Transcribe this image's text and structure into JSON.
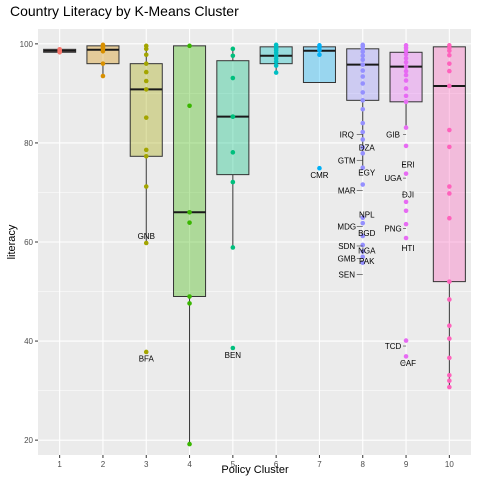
{
  "chart_data": {
    "type": "box",
    "title": "Country Literacy by K-Means Cluster",
    "xlabel": "Policy Cluster",
    "ylabel": "literacy",
    "ylim": [
      17,
      103
    ],
    "yticks": [
      20,
      40,
      60,
      80,
      100
    ],
    "grid": true,
    "legend": "none",
    "categories": [
      "1",
      "2",
      "3",
      "4",
      "5",
      "6",
      "7",
      "8",
      "9",
      "10"
    ],
    "colors": [
      "#F8766D",
      "#D89000",
      "#A3A500",
      "#39B600",
      "#00BF7D",
      "#00BFC4",
      "#00B0F6",
      "#9590FF",
      "#E76BF3",
      "#FF62BC"
    ],
    "boxes": [
      {
        "cluster": "1",
        "q1": 98.3,
        "median": 98.6,
        "q3": 98.9,
        "whisker_low": 98.3,
        "whisker_high": 98.9
      },
      {
        "cluster": "2",
        "q1": 96.0,
        "median": 98.8,
        "q3": 99.6,
        "whisker_low": 93.5,
        "whisker_high": 99.8
      },
      {
        "cluster": "3",
        "q1": 77.3,
        "median": 90.8,
        "q3": 96.0,
        "whisker_low": 59.8,
        "whisker_high": 99.6
      },
      {
        "cluster": "4",
        "q1": 49.0,
        "median": 66.0,
        "q3": 99.6,
        "whisker_low": 19.2,
        "whisker_high": 99.8
      },
      {
        "cluster": "5",
        "q1": 73.6,
        "median": 85.3,
        "q3": 96.6,
        "whisker_low": 58.9,
        "whisker_high": 99.0
      },
      {
        "cluster": "6",
        "q1": 96.0,
        "median": 97.6,
        "q3": 99.4,
        "whisker_low": 94.2,
        "whisker_high": 99.8
      },
      {
        "cluster": "7",
        "q1": 92.2,
        "median": 98.6,
        "q3": 99.4,
        "whisker_low": 92.2,
        "whisker_high": 99.8
      },
      {
        "cluster": "8",
        "q1": 88.6,
        "median": 95.8,
        "q3": 99.0,
        "whisker_low": 75.0,
        "whisker_high": 99.8
      },
      {
        "cluster": "9",
        "q1": 88.3,
        "median": 95.4,
        "q3": 98.3,
        "whisker_low": 83.1,
        "whisker_high": 99.7
      },
      {
        "cluster": "10",
        "q1": 52.0,
        "median": 91.5,
        "q3": 99.4,
        "whisker_low": 30.7,
        "whisker_high": 99.7
      }
    ],
    "points": [
      {
        "cluster": "1",
        "values": [
          98.3,
          98.5,
          98.7,
          98.9
        ]
      },
      {
        "cluster": "2",
        "values": [
          93.5,
          96.0,
          98.5,
          99.0,
          99.3,
          99.6,
          99.8
        ]
      },
      {
        "cluster": "3",
        "values": [
          37.8,
          59.8,
          71.2,
          77.3,
          78.6,
          85.1,
          90.8,
          92.5,
          94.3,
          96.0,
          97.8,
          99.0,
          99.6
        ]
      },
      {
        "cluster": "4",
        "values": [
          19.2,
          47.6,
          49.0,
          63.9,
          66.0,
          87.5,
          99.6
        ]
      },
      {
        "cluster": "5",
        "values": [
          38.6,
          58.9,
          72.1,
          78.1,
          85.3,
          85.3,
          93.1,
          97.6,
          99.0
        ]
      },
      {
        "cluster": "6",
        "values": [
          94.2,
          95.6,
          96.4,
          97.0,
          97.6,
          98.2,
          98.7,
          99.1,
          99.4,
          99.8
        ]
      },
      {
        "cluster": "7",
        "values": [
          74.9,
          97.8,
          98.7,
          99.3,
          99.7
        ]
      },
      {
        "cluster": "8",
        "values": [
          55.8,
          57.0,
          58.1,
          59.4,
          61.2,
          63.8,
          64.9,
          71.6,
          75.0,
          77.9,
          79.1,
          80.7,
          82.2,
          84.0,
          86.8,
          88.6,
          90.2,
          92.0,
          93.4,
          94.6,
          95.8,
          96.8,
          97.6,
          98.4,
          99.0,
          99.5,
          99.8
        ]
      },
      {
        "cluster": "9",
        "values": [
          36.9,
          40.1,
          60.8,
          63.6,
          66.3,
          68.1,
          73.8,
          79.4,
          83.1,
          88.3,
          89.5,
          91.0,
          92.6,
          93.7,
          94.5,
          95.4,
          96.3,
          97.1,
          97.9,
          98.6,
          99.2,
          99.7
        ]
      },
      {
        "cluster": "10",
        "values": [
          30.7,
          32.0,
          33.1,
          36.6,
          40.5,
          43.1,
          48.4,
          52.0,
          64.8,
          69.8,
          71.2,
          79.2,
          82.6,
          91.5,
          94.5,
          96.0,
          97.7,
          98.6,
          99.2,
          99.7
        ]
      }
    ],
    "annotations": [
      {
        "label": "GNB",
        "cluster": "3",
        "value": 61.2
      },
      {
        "label": "BFA",
        "cluster": "3",
        "value": 36.5
      },
      {
        "label": "BEN",
        "cluster": "5",
        "value": 37.2
      },
      {
        "label": "CMR",
        "cluster": "7",
        "value": 73.5
      },
      {
        "label": "IRQ",
        "cluster": "8",
        "value": 81.7
      },
      {
        "label": "DZA",
        "cluster": "8",
        "value": 79.1
      },
      {
        "label": "GTM",
        "cluster": "8",
        "value": 76.5
      },
      {
        "label": "EGY",
        "cluster": "8",
        "value": 74.0
      },
      {
        "label": "MAR",
        "cluster": "8",
        "value": 70.4
      },
      {
        "label": "NPL",
        "cluster": "8",
        "value": 65.6
      },
      {
        "label": "MDG",
        "cluster": "8",
        "value": 63.1
      },
      {
        "label": "BGD",
        "cluster": "8",
        "value": 61.8
      },
      {
        "label": "SDN",
        "cluster": "8",
        "value": 59.2
      },
      {
        "label": "NGA",
        "cluster": "8",
        "value": 58.3
      },
      {
        "label": "GMB",
        "cluster": "8",
        "value": 56.7
      },
      {
        "label": "PAK",
        "cluster": "8",
        "value": 56.2
      },
      {
        "label": "SEN",
        "cluster": "8",
        "value": 53.4
      },
      {
        "label": "GIB",
        "cluster": "9",
        "value": 81.7
      },
      {
        "label": "ERI",
        "cluster": "9",
        "value": 75.6
      },
      {
        "label": "UGA",
        "cluster": "9",
        "value": 72.9
      },
      {
        "label": "DJI",
        "cluster": "9",
        "value": 69.6
      },
      {
        "label": "PNG",
        "cluster": "9",
        "value": 62.7
      },
      {
        "label": "HTI",
        "cluster": "9",
        "value": 58.8
      },
      {
        "label": "TCD",
        "cluster": "9",
        "value": 39.0
      },
      {
        "label": "CAF",
        "cluster": "9",
        "value": 35.6
      }
    ]
  }
}
